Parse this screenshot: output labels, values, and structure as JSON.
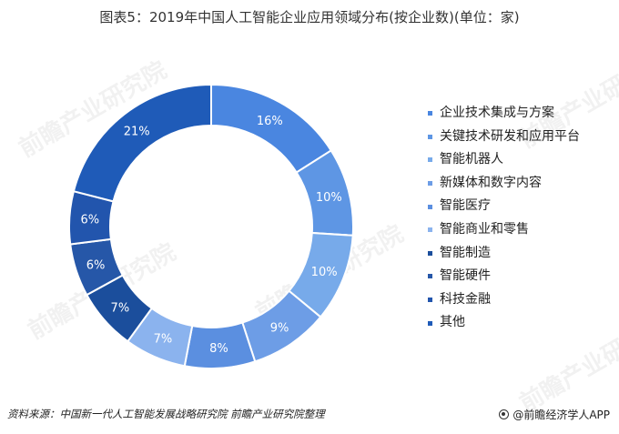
{
  "title": "图表5：2019年中国人工智能企业应用领域分布(按企业数)(单位：家)",
  "chart_data": {
    "type": "pie",
    "title": "图表5：2019年中国人工智能企业应用领域分布(按企业数)(单位：家)",
    "categories": [
      "企业技术集成与方案",
      "关键技术研发和应用平台",
      "智能机器人",
      "新媒体和数字内容",
      "智能医疗",
      "智能商业和零售",
      "智能制造",
      "智能硬件",
      "科技金融",
      "其他"
    ],
    "values": [
      16,
      10,
      10,
      9,
      8,
      7,
      7,
      6,
      6,
      21
    ],
    "value_labels": [
      "16%",
      "10%",
      "10%",
      "9%",
      "8%",
      "7%",
      "7%",
      "6%",
      "6%",
      "21%"
    ],
    "colors": [
      "#4a86e0",
      "#5e96e4",
      "#77aaea",
      "#6d9de6",
      "#5b8fe0",
      "#8bb3ee",
      "#1b4e9c",
      "#2657a8",
      "#2255ad",
      "#1f5bb8"
    ],
    "donut": true,
    "legend_position": "right"
  },
  "footer": {
    "source": "资料来源：中国新一代人工智能发展战略研究院 前瞻产业研究院整理",
    "brand": "@前瞻经济学人APP"
  },
  "watermark_text": "前瞻产业研究院"
}
